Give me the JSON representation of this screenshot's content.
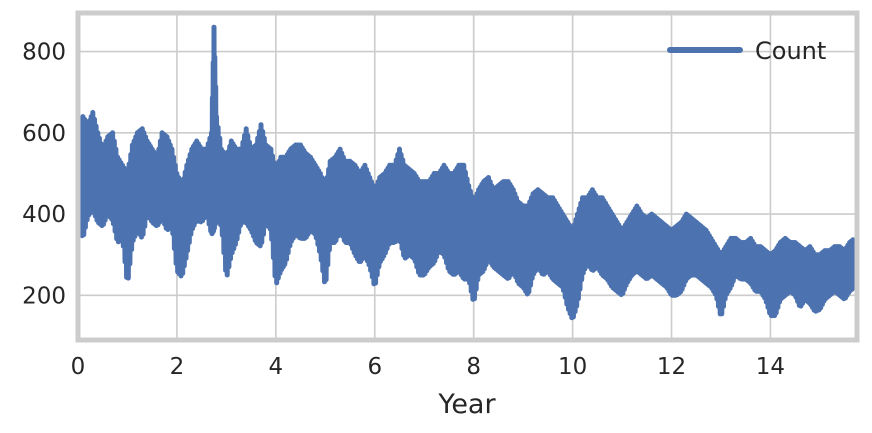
{
  "chart_data": {
    "type": "line",
    "title": "",
    "xlabel": "Year",
    "ylabel": "",
    "xlim": [
      0,
      15.75
    ],
    "ylim": [
      90,
      895
    ],
    "x_ticks": [
      0,
      2,
      4,
      6,
      8,
      10,
      12,
      14
    ],
    "y_ticks": [
      200,
      400,
      600,
      800
    ],
    "x_tick_labels": [
      "0",
      "2",
      "4",
      "6",
      "8",
      "10",
      "12",
      "14"
    ],
    "y_tick_labels": [
      "200",
      "400",
      "600",
      "800"
    ],
    "grid": true,
    "legend": {
      "position": "top-right",
      "entries": [
        "Count"
      ]
    },
    "series": [
      {
        "name": "Count",
        "color": "#4c72b0",
        "x": [
          0.0,
          0.1,
          0.2,
          0.3,
          0.4,
          0.5,
          0.6,
          0.7,
          0.8,
          0.9,
          1.0,
          1.1,
          1.2,
          1.3,
          1.4,
          1.5,
          1.6,
          1.7,
          1.8,
          1.9,
          2.0,
          2.1,
          2.2,
          2.3,
          2.4,
          2.5,
          2.6,
          2.7,
          2.75,
          2.8,
          2.9,
          3.0,
          3.1,
          3.2,
          3.3,
          3.4,
          3.5,
          3.6,
          3.7,
          3.8,
          3.9,
          4.0,
          4.1,
          4.2,
          4.3,
          4.4,
          4.5,
          4.6,
          4.7,
          4.8,
          4.9,
          5.0,
          5.1,
          5.2,
          5.3,
          5.4,
          5.5,
          5.6,
          5.7,
          5.8,
          5.9,
          6.0,
          6.1,
          6.2,
          6.3,
          6.4,
          6.5,
          6.6,
          6.7,
          6.8,
          6.9,
          7.0,
          7.1,
          7.2,
          7.3,
          7.4,
          7.5,
          7.6,
          7.7,
          7.8,
          7.9,
          8.0,
          8.1,
          8.2,
          8.3,
          8.4,
          8.5,
          8.6,
          8.7,
          8.8,
          8.9,
          9.0,
          9.1,
          9.2,
          9.3,
          9.4,
          9.5,
          9.6,
          9.7,
          9.8,
          9.9,
          10.0,
          10.1,
          10.2,
          10.3,
          10.4,
          10.5,
          10.6,
          10.7,
          10.8,
          10.9,
          11.0,
          11.1,
          11.2,
          11.3,
          11.4,
          11.5,
          11.6,
          11.7,
          11.8,
          11.9,
          12.0,
          12.1,
          12.2,
          12.3,
          12.4,
          12.5,
          12.6,
          12.7,
          12.8,
          12.9,
          13.0,
          13.1,
          13.2,
          13.3,
          13.4,
          13.5,
          13.6,
          13.7,
          13.8,
          13.9,
          14.0,
          14.1,
          14.2,
          14.3,
          14.4,
          14.5,
          14.6,
          14.7,
          14.8,
          14.9,
          15.0,
          15.1,
          15.2,
          15.3,
          15.4,
          15.5,
          15.6,
          15.7
        ],
        "low": [
          380,
          340,
          395,
          410,
          380,
          370,
          400,
          385,
          330,
          340,
          225,
          330,
          360,
          340,
          400,
          380,
          370,
          390,
          360,
          370,
          260,
          245,
          300,
          360,
          385,
          380,
          400,
          350,
          360,
          390,
          370,
          240,
          300,
          330,
          380,
          380,
          360,
          330,
          320,
          380,
          360,
          225,
          260,
          280,
          330,
          350,
          340,
          340,
          360,
          350,
          300,
          220,
          330,
          330,
          360,
          330,
          330,
          300,
          280,
          300,
          270,
          220,
          280,
          300,
          330,
          330,
          340,
          290,
          300,
          290,
          250,
          250,
          270,
          280,
          310,
          300,
          260,
          250,
          260,
          240,
          240,
          180,
          250,
          260,
          290,
          270,
          260,
          250,
          240,
          260,
          230,
          220,
          200,
          250,
          270,
          250,
          260,
          240,
          230,
          220,
          170,
          140,
          180,
          250,
          280,
          260,
          270,
          250,
          240,
          220,
          210,
          200,
          230,
          250,
          260,
          250,
          240,
          250,
          240,
          230,
          220,
          200,
          200,
          210,
          240,
          250,
          250,
          240,
          230,
          220,
          200,
          145,
          200,
          220,
          250,
          240,
          240,
          230,
          210,
          210,
          190,
          150,
          150,
          190,
          200,
          210,
          200,
          170,
          190,
          180,
          160,
          165,
          190,
          200,
          210,
          200,
          190,
          210,
          220
        ],
        "high": [
          560,
          640,
          620,
          650,
          600,
          560,
          590,
          600,
          540,
          520,
          500,
          570,
          600,
          610,
          580,
          560,
          540,
          600,
          590,
          560,
          500,
          470,
          520,
          560,
          580,
          560,
          560,
          600,
          860,
          640,
          560,
          540,
          580,
          560,
          560,
          610,
          560,
          570,
          620,
          570,
          560,
          510,
          540,
          540,
          560,
          570,
          570,
          550,
          540,
          520,
          500,
          470,
          530,
          540,
          560,
          530,
          530,
          520,
          500,
          520,
          490,
          460,
          490,
          500,
          520,
          520,
          560,
          520,
          510,
          500,
          480,
          480,
          480,
          500,
          500,
          520,
          500,
          500,
          520,
          520,
          470,
          430,
          460,
          480,
          490,
          460,
          470,
          480,
          480,
          460,
          430,
          420,
          420,
          450,
          460,
          450,
          440,
          440,
          420,
          400,
          380,
          360,
          400,
          440,
          440,
          460,
          440,
          440,
          420,
          400,
          380,
          360,
          380,
          400,
          420,
          400,
          390,
          400,
          390,
          380,
          370,
          360,
          370,
          380,
          400,
          390,
          380,
          370,
          360,
          340,
          320,
          300,
          320,
          340,
          340,
          330,
          330,
          340,
          320,
          320,
          310,
          300,
          310,
          330,
          340,
          330,
          330,
          320,
          310,
          320,
          300,
          300,
          310,
          310,
          320,
          320,
          310,
          330,
          340
        ]
      }
    ]
  }
}
